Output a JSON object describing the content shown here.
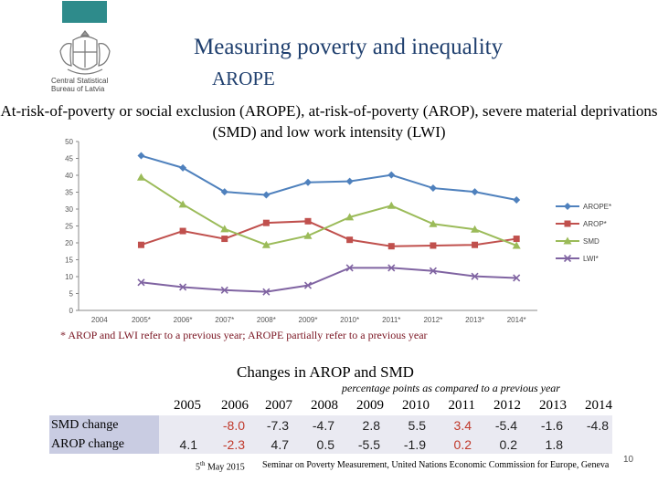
{
  "header": {
    "org_line1": "Central Statistical",
    "org_line2": "Bureau of Latvia",
    "title": "Measuring poverty and inequality",
    "subtitle": "AROPE"
  },
  "chart_title": "At-risk-of-poverty or social exclusion (AROPE), at-risk-of-poverty (AROP), severe material deprivations (SMD) and low work intensity (LWI)",
  "chart_data": {
    "type": "line",
    "categories": [
      "2004",
      "2005*",
      "2006*",
      "2007*",
      "2008*",
      "2009*",
      "2010*",
      "2011*",
      "2012*",
      "2013*",
      "2014*"
    ],
    "ylim": [
      0,
      50
    ],
    "yticks": [
      0,
      5,
      10,
      15,
      20,
      25,
      30,
      35,
      40,
      45,
      50
    ],
    "grid": false,
    "legend": "right",
    "series": [
      {
        "name": "AROPE*",
        "color": "#4f81bd",
        "marker": "diamond",
        "values": [
          null,
          45.8,
          42.2,
          35.1,
          34.2,
          37.9,
          38.2,
          40.1,
          36.2,
          35.1,
          32.7
        ]
      },
      {
        "name": "AROP*",
        "color": "#c0504d",
        "marker": "square",
        "values": [
          null,
          19.4,
          23.5,
          21.2,
          25.9,
          26.4,
          20.9,
          19.0,
          19.2,
          19.4,
          21.2
        ]
      },
      {
        "name": "SMD",
        "color": "#9bbb59",
        "marker": "triangle",
        "values": [
          null,
          39.4,
          31.4,
          24.1,
          19.4,
          22.1,
          27.6,
          31.0,
          25.6,
          24.0,
          19.2
        ]
      },
      {
        "name": "LWI*",
        "color": "#8064a2",
        "marker": "cross",
        "values": [
          null,
          8.3,
          6.9,
          6.0,
          5.5,
          7.4,
          12.6,
          12.6,
          11.7,
          10.1,
          9.6
        ]
      }
    ]
  },
  "footnote": "* AROP and LWI refer to a previous year; AROPE partially refer to a previous year",
  "table": {
    "title": "Changes in AROP and SMD",
    "note": "percentage points as compared to a previous year",
    "years": [
      "2005",
      "2006",
      "2007",
      "2008",
      "2009",
      "2010",
      "2011",
      "2012",
      "2013",
      "2014"
    ],
    "rows": [
      {
        "label": "SMD change",
        "values": [
          "",
          "-8.0",
          "-7.3",
          "-4.7",
          "2.8",
          "5.5",
          "3.4",
          "-5.4",
          "-1.6",
          "-4.8"
        ]
      },
      {
        "label": "AROP change",
        "values": [
          "4.1",
          "-2.3",
          "4.7",
          "0.5",
          "-5.5",
          "-1.9",
          "0.2",
          "0.2",
          "1.8",
          ""
        ]
      }
    ],
    "red_columns": [
      1,
      6
    ]
  },
  "footer": {
    "date_day": "5",
    "date_suffix": "th",
    "date_rest": " May 2015",
    "seminar": "Seminar on Poverty Measurement, United Nations Economic Commission for Europe, Geneva",
    "page_number": "10"
  }
}
